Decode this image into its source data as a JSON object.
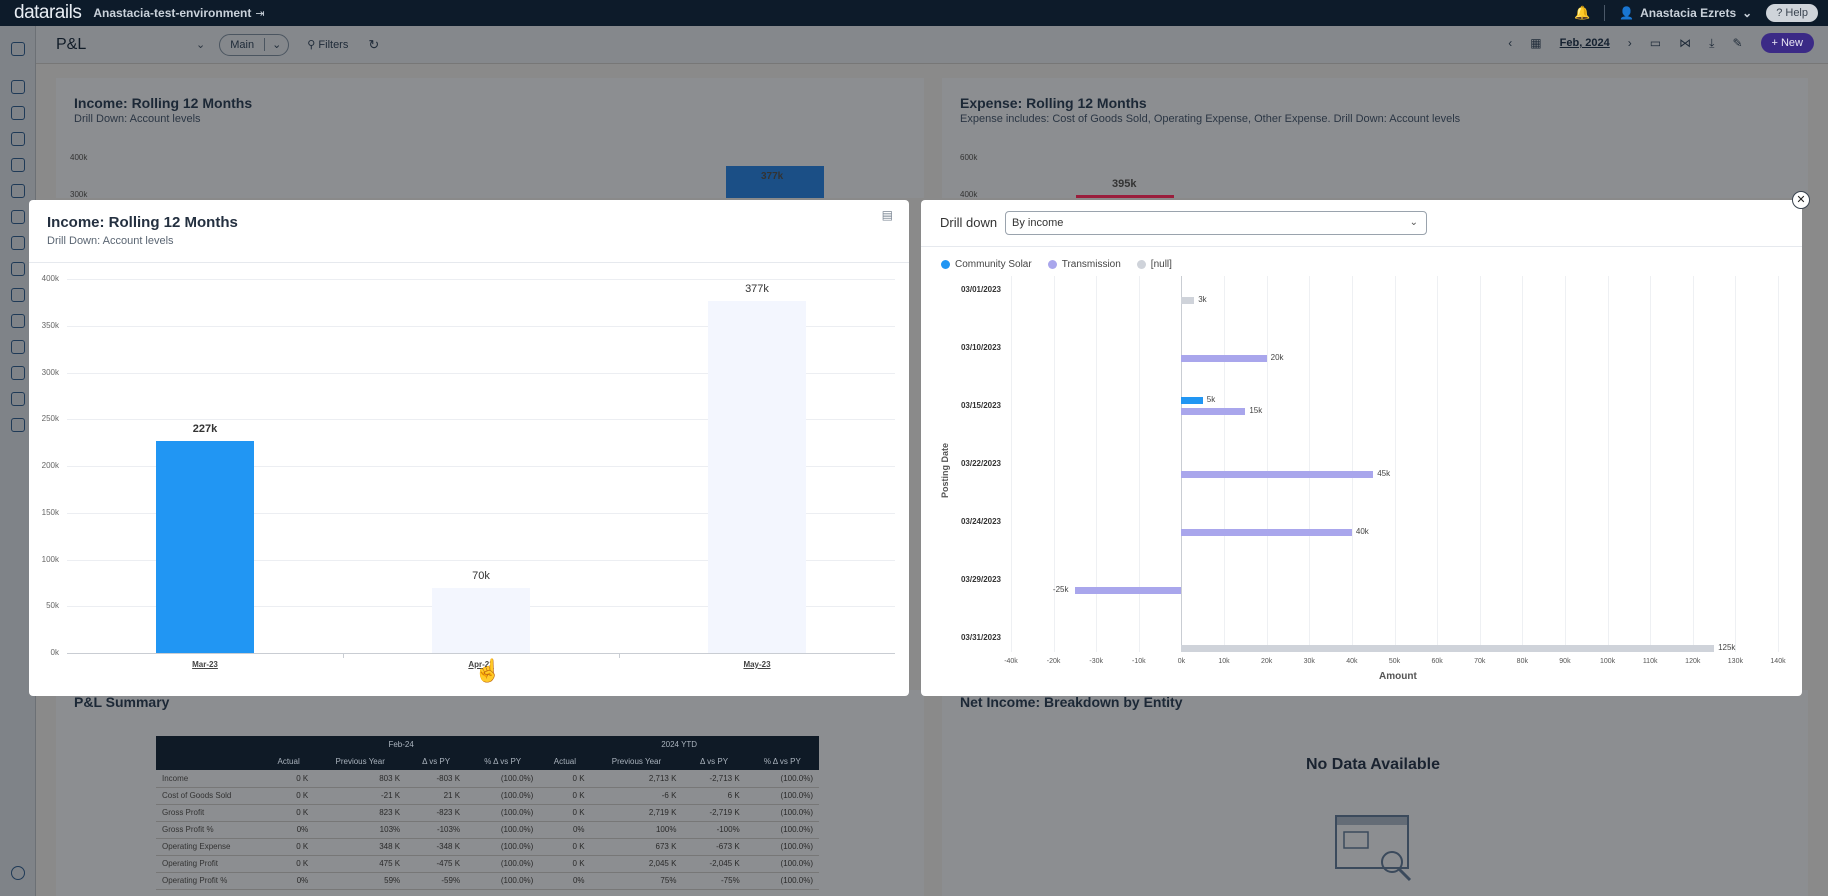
{
  "topbar": {
    "logo": "datarails",
    "environment": "Anastacia-test-environment",
    "user_name": "Anastacia Ezrets",
    "help_label": "Help"
  },
  "pagebar": {
    "title": "P&L",
    "view": "Main",
    "filters_label": "Filters",
    "date": "Feb, 2024",
    "new_label": "New"
  },
  "background": {
    "income_card": {
      "title": "Income: Rolling 12 Months",
      "subtitle": "Drill Down: Account levels",
      "ytick_top": "400k",
      "ytick_2": "300k",
      "bar_label": "377k"
    },
    "expense_card": {
      "title": "Expense: Rolling 12 Months",
      "subtitle": "Expense includes: Cost of Goods Sold, Operating Expense, Other Expense. Drill Down: Account levels",
      "ytick_top": "600k",
      "ytick_2": "400k",
      "bar_label": "395k"
    },
    "summary_card": {
      "title": "P&L Summary",
      "period_feb": "Feb-24",
      "period_ytd": "2024 YTD",
      "columns": [
        "Actual",
        "Previous Year",
        "Δ vs PY",
        "% Δ vs PY"
      ],
      "rows": [
        {
          "label": "Income",
          "feb": [
            "0 K",
            "803 K",
            "-803 K",
            "(100.0%)"
          ],
          "ytd": [
            "0 K",
            "2,713 K",
            "-2,713 K",
            "(100.0%)"
          ]
        },
        {
          "label": "Cost of Goods Sold",
          "feb": [
            "0 K",
            "-21 K",
            "21 K",
            "(100.0%)"
          ],
          "ytd": [
            "0 K",
            "-6 K",
            "6 K",
            "(100.0%)"
          ]
        },
        {
          "label": "Gross Profit",
          "feb": [
            "0 K",
            "823 K",
            "-823 K",
            "(100.0%)"
          ],
          "ytd": [
            "0 K",
            "2,719 K",
            "-2,719 K",
            "(100.0%)"
          ]
        },
        {
          "label": "Gross Profit %",
          "feb": [
            "0%",
            "103%",
            "-103%",
            "(100.0%)"
          ],
          "ytd": [
            "0%",
            "100%",
            "-100%",
            "(100.0%)"
          ]
        },
        {
          "label": "Operating Expense",
          "feb": [
            "0 K",
            "348 K",
            "-348 K",
            "(100.0%)"
          ],
          "ytd": [
            "0 K",
            "673 K",
            "-673 K",
            "(100.0%)"
          ]
        },
        {
          "label": "Operating Profit",
          "feb": [
            "0 K",
            "475 K",
            "-475 K",
            "(100.0%)"
          ],
          "ytd": [
            "0 K",
            "2,045 K",
            "-2,045 K",
            "(100.0%)"
          ]
        },
        {
          "label": "Operating Profit %",
          "feb": [
            "0%",
            "59%",
            "-59%",
            "(100.0%)"
          ],
          "ytd": [
            "0%",
            "75%",
            "-75%",
            "(100.0%)"
          ]
        }
      ]
    },
    "net_income_card": {
      "title": "Net Income: Breakdown by Entity",
      "no_data": "No Data Available"
    }
  },
  "modal_left": {
    "title": "Income: Rolling 12 Months",
    "subtitle": "Drill Down: Account levels",
    "yticks": [
      "400k",
      "350k",
      "300k",
      "250k",
      "200k",
      "150k",
      "100k",
      "50k",
      "0k"
    ]
  },
  "modal_right": {
    "drill_label": "Drill down",
    "drill_value": "By income",
    "legend": [
      {
        "name": "Community Solar",
        "color": "#2196f3"
      },
      {
        "name": "Transmission",
        "color": "#a9a6ec"
      },
      {
        "name": "[null]",
        "color": "#cfd3da"
      }
    ],
    "y_axis_title": "Posting Date",
    "x_axis_title": "Amount",
    "xticks": [
      "-40k",
      "-20k",
      "-30k",
      "-10k",
      "0k",
      "10k",
      "20k",
      "30k",
      "40k",
      "50k",
      "60k",
      "70k",
      "80k",
      "90k",
      "100k",
      "110k",
      "120k",
      "130k",
      "140k"
    ]
  },
  "chart_data": [
    {
      "type": "bar",
      "title": "Income: Rolling 12 Months",
      "categories": [
        "Mar-23",
        "Apr-23",
        "May-23"
      ],
      "values": [
        227,
        70,
        377
      ],
      "value_labels": [
        "227k",
        "70k",
        "377k"
      ],
      "highlighted": [
        true,
        false,
        false
      ],
      "ylim": [
        0,
        400
      ],
      "ylabel": "",
      "xlabel": ""
    },
    {
      "type": "bar",
      "orientation": "horizontal",
      "xlabel": "Amount",
      "ylabel": "Posting Date",
      "categories": [
        "03/01/2023",
        "03/10/2023",
        "03/15/2023",
        "03/22/2023",
        "03/24/2023",
        "03/29/2023",
        "03/31/2023"
      ],
      "xlim": [
        -40,
        140
      ],
      "bars": [
        {
          "date": "03/01/2023",
          "series": "[null]",
          "value": 3,
          "label": "3k"
        },
        {
          "date": "03/10/2023",
          "series": "Transmission",
          "value": 20,
          "label": "20k"
        },
        {
          "date": "03/15/2023",
          "series": "Community Solar",
          "value": 5,
          "label": "5k"
        },
        {
          "date": "03/15/2023",
          "series": "Transmission",
          "value": 15,
          "label": "15k"
        },
        {
          "date": "03/22/2023",
          "series": "Transmission",
          "value": 45,
          "label": "45k"
        },
        {
          "date": "03/24/2023",
          "series": "Transmission",
          "value": 40,
          "label": "40k"
        },
        {
          "date": "03/29/2023",
          "series": "Transmission",
          "value": -25,
          "label": "-25k"
        },
        {
          "date": "03/31/2023",
          "series": "[null]",
          "value": 125,
          "label": "125k"
        }
      ]
    }
  ]
}
